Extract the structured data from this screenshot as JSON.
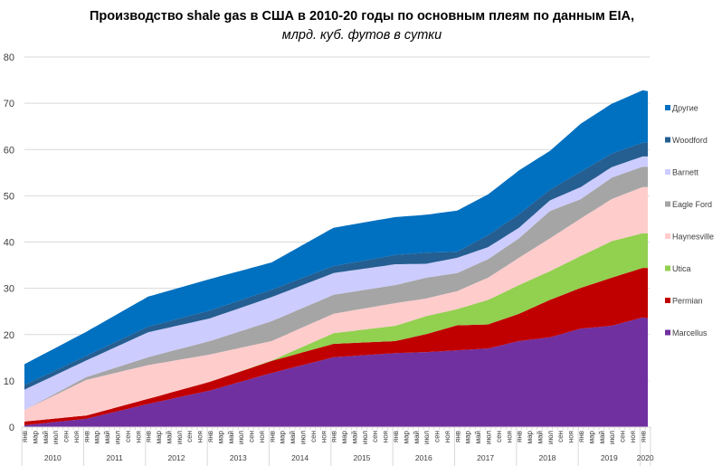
{
  "chart_data": {
    "type": "area",
    "stacked": true,
    "title": "Производство  shale gas в США в 2010-20 годы по основным  плеям по данным  EIA,",
    "subtitle": "млрд. куб. футов в сутки",
    "xlabel": "",
    "ylabel": "",
    "ylim": [
      0,
      80
    ],
    "yticks": [
      0,
      10,
      20,
      30,
      40,
      50,
      60,
      70,
      80
    ],
    "grid": true,
    "legend_position": "right",
    "x": [
      "2010-01",
      "2011-01",
      "2012-01",
      "2013-01",
      "2014-01",
      "2015-01",
      "2016-01",
      "2016-07",
      "2017-01",
      "2017-07",
      "2018-01",
      "2018-07",
      "2019-01",
      "2019-07",
      "2020-01",
      "2020-02"
    ],
    "month_tick_labels": [
      "янв",
      "мар",
      "май",
      "июл",
      "сен",
      "ноя"
    ],
    "year_labels": [
      "2010",
      "2011",
      "2012",
      "2013",
      "2014",
      "2015",
      "2016",
      "2017",
      "2018",
      "2019",
      "2020"
    ],
    "series": [
      {
        "name": "Marcellus",
        "color": "#7030a0",
        "values": [
          0.4,
          1.8,
          5.0,
          7.9,
          11.7,
          15.1,
          16.0,
          16.2,
          16.6,
          17.0,
          18.6,
          19.4,
          21.3,
          21.9,
          23.7,
          23.5
        ]
      },
      {
        "name": "Permian",
        "color": "#c00000",
        "values": [
          0.8,
          0.7,
          1.1,
          1.9,
          2.6,
          2.9,
          2.6,
          3.9,
          5.4,
          5.2,
          5.9,
          8.1,
          8.8,
          10.4,
          10.7,
          10.9
        ]
      },
      {
        "name": "Utica",
        "color": "#92d050",
        "values": [
          0,
          0,
          0,
          0,
          0.1,
          2.3,
          3.3,
          3.9,
          3.5,
          5.3,
          6.2,
          6.2,
          6.9,
          7.9,
          7.5,
          7.5
        ]
      },
      {
        "name": "Haynesville",
        "color": "#ffcccc",
        "values": [
          2.5,
          7.7,
          7.3,
          5.9,
          4.2,
          4.2,
          4.9,
          3.8,
          3.9,
          4.8,
          5.9,
          7.1,
          8.1,
          9.1,
          10.0,
          10.0
        ]
      },
      {
        "name": "Eagle  Ford",
        "color": "#a5a5a5",
        "values": [
          0,
          0.6,
          1.7,
          2.9,
          4.3,
          4.1,
          3.9,
          4.5,
          3.9,
          4.0,
          4.2,
          5.9,
          4.2,
          4.6,
          4.4,
          4.4
        ]
      },
      {
        "name": "Barnett",
        "color": "#ccccff",
        "values": [
          4.4,
          3.6,
          5.4,
          4.9,
          5.2,
          4.7,
          4.5,
          3.0,
          3.3,
          2.6,
          2.3,
          2.3,
          2.6,
          2.3,
          2.2,
          2.2
        ]
      },
      {
        "name": "Woodford",
        "color": "#255e91",
        "values": [
          1.0,
          1.0,
          1.2,
          1.7,
          1.6,
          1.5,
          2.0,
          2.4,
          1.3,
          2.6,
          2.9,
          2.3,
          3.3,
          2.9,
          3.0,
          3.0
        ]
      },
      {
        "name": "Другие",
        "color": "#0070c0",
        "values": [
          4.5,
          5.2,
          6.5,
          6.8,
          5.9,
          8.3,
          8.2,
          8.2,
          8.9,
          8.8,
          9.5,
          8.4,
          10.4,
          10.8,
          11.3,
          11.1
        ]
      }
    ]
  }
}
